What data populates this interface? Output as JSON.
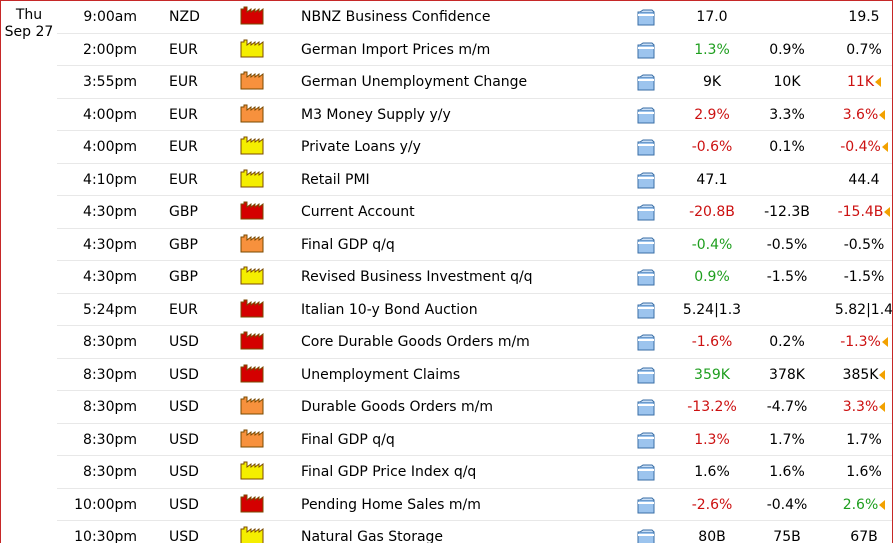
{
  "date": {
    "weekday": "Thu",
    "day": "Sep 27"
  },
  "colors": {
    "high": "#d40000",
    "medium": "#f7913d",
    "low": "#f5ee00",
    "good": "#1e9e1e",
    "bad": "#cc1111"
  },
  "events": [
    {
      "time": "9:00am",
      "currency": "NZD",
      "impact": "high",
      "event": "NBNZ Business Confidence",
      "actual": "17.0",
      "actual_status": "neutral",
      "forecast": "",
      "previous": "19.5",
      "previous_status": "neutral",
      "revised": false
    },
    {
      "time": "2:00pm",
      "currency": "EUR",
      "impact": "low",
      "event": "German Import Prices m/m",
      "actual": "1.3%",
      "actual_status": "good",
      "forecast": "0.9%",
      "previous": "0.7%",
      "previous_status": "neutral",
      "revised": false
    },
    {
      "time": "3:55pm",
      "currency": "EUR",
      "impact": "medium",
      "event": "German Unemployment Change",
      "actual": "9K",
      "actual_status": "neutral",
      "forecast": "10K",
      "previous": "11K",
      "previous_status": "bad",
      "revised": true
    },
    {
      "time": "4:00pm",
      "currency": "EUR",
      "impact": "medium",
      "event": "M3 Money Supply y/y",
      "actual": "2.9%",
      "actual_status": "bad",
      "forecast": "3.3%",
      "previous": "3.6%",
      "previous_status": "bad",
      "revised": true
    },
    {
      "time": "4:00pm",
      "currency": "EUR",
      "impact": "low",
      "event": "Private Loans y/y",
      "actual": "-0.6%",
      "actual_status": "bad",
      "forecast": "0.1%",
      "previous": "-0.4%",
      "previous_status": "bad",
      "revised": true
    },
    {
      "time": "4:10pm",
      "currency": "EUR",
      "impact": "low",
      "event": "Retail PMI",
      "actual": "47.1",
      "actual_status": "neutral",
      "forecast": "",
      "previous": "44.4",
      "previous_status": "neutral",
      "revised": false
    },
    {
      "time": "4:30pm",
      "currency": "GBP",
      "impact": "high",
      "event": "Current Account",
      "actual": "-20.8B",
      "actual_status": "bad",
      "forecast": "-12.3B",
      "previous": "-15.4B",
      "previous_status": "bad",
      "revised": true
    },
    {
      "time": "4:30pm",
      "currency": "GBP",
      "impact": "medium",
      "event": "Final GDP q/q",
      "actual": "-0.4%",
      "actual_status": "good",
      "forecast": "-0.5%",
      "previous": "-0.5%",
      "previous_status": "neutral",
      "revised": false
    },
    {
      "time": "4:30pm",
      "currency": "GBP",
      "impact": "low",
      "event": "Revised Business Investment q/q",
      "actual": "0.9%",
      "actual_status": "good",
      "forecast": "-1.5%",
      "previous": "-1.5%",
      "previous_status": "neutral",
      "revised": false
    },
    {
      "time": "5:24pm",
      "currency": "EUR",
      "impact": "high",
      "event": "Italian 10-y Bond Auction",
      "actual": "5.24|1.3",
      "actual_status": "neutral",
      "forecast": "",
      "previous": "5.82|1.4",
      "previous_status": "neutral",
      "revised": false
    },
    {
      "time": "8:30pm",
      "currency": "USD",
      "impact": "high",
      "event": "Core Durable Goods Orders m/m",
      "actual": "-1.6%",
      "actual_status": "bad",
      "forecast": "0.2%",
      "previous": "-1.3%",
      "previous_status": "bad",
      "revised": true
    },
    {
      "time": "8:30pm",
      "currency": "USD",
      "impact": "high",
      "event": "Unemployment Claims",
      "actual": "359K",
      "actual_status": "good",
      "forecast": "378K",
      "previous": "385K",
      "previous_status": "neutral",
      "revised": true
    },
    {
      "time": "8:30pm",
      "currency": "USD",
      "impact": "medium",
      "event": "Durable Goods Orders m/m",
      "actual": "-13.2%",
      "actual_status": "bad",
      "forecast": "-4.7%",
      "previous": "3.3%",
      "previous_status": "bad",
      "revised": true
    },
    {
      "time": "8:30pm",
      "currency": "USD",
      "impact": "medium",
      "event": "Final GDP q/q",
      "actual": "1.3%",
      "actual_status": "bad",
      "forecast": "1.7%",
      "previous": "1.7%",
      "previous_status": "neutral",
      "revised": false
    },
    {
      "time": "8:30pm",
      "currency": "USD",
      "impact": "low",
      "event": "Final GDP Price Index q/q",
      "actual": "1.6%",
      "actual_status": "neutral",
      "forecast": "1.6%",
      "previous": "1.6%",
      "previous_status": "neutral",
      "revised": false
    },
    {
      "time": "10:00pm",
      "currency": "USD",
      "impact": "high",
      "event": "Pending Home Sales m/m",
      "actual": "-2.6%",
      "actual_status": "bad",
      "forecast": "-0.4%",
      "previous": "2.6%",
      "previous_status": "good",
      "revised": true
    },
    {
      "time": "10:30pm",
      "currency": "USD",
      "impact": "low",
      "event": "Natural Gas Storage",
      "actual": "80B",
      "actual_status": "neutral",
      "forecast": "75B",
      "previous": "67B",
      "previous_status": "neutral",
      "revised": false
    }
  ]
}
